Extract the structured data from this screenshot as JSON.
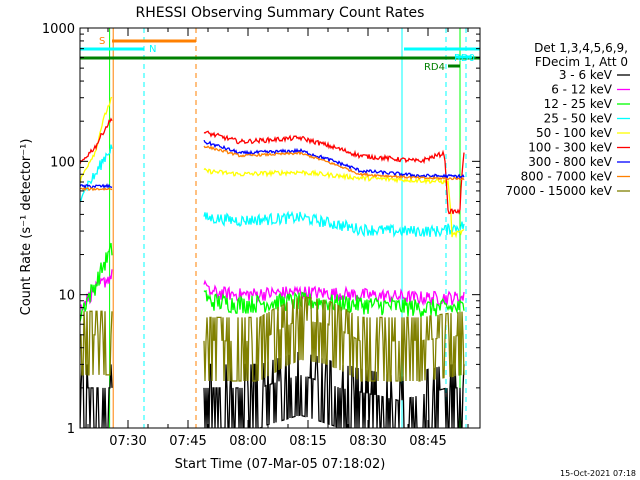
{
  "chart_data": {
    "type": "line",
    "title": "RHESSI Observing Summary Count Rates",
    "xlabel": "Start Time (07-Mar-05 07:18:02)",
    "ylabel": "Count Rate (s⁻¹ detector⁻¹)",
    "yscale": "log",
    "ylim": [
      1,
      1000
    ],
    "xlim_minutes": [
      0,
      100
    ],
    "x_ticks": [
      {
        "label": "07:30",
        "minute": 12
      },
      {
        "label": "07:45",
        "minute": 27
      },
      {
        "label": "08:00",
        "minute": 42
      },
      {
        "label": "08:15",
        "minute": 57
      },
      {
        "label": "08:30",
        "minute": 72
      },
      {
        "label": "08:45",
        "minute": 87
      }
    ],
    "y_ticks": [
      {
        "label": "1",
        "value": 1
      },
      {
        "label": "10",
        "value": 10
      },
      {
        "label": "100",
        "value": 100
      },
      {
        "label": "1000",
        "value": 1000
      }
    ],
    "legend_header": [
      "Det 1,3,4,5,6,9,",
      "FDecim 1, Att 0"
    ],
    "legend_position": "right",
    "series": [
      {
        "name": "3 - 6 keV",
        "color": "#000000",
        "noise": 0.5,
        "segments": [
          {
            "x": [
              0,
              8
            ],
            "y": [
              2,
              2
            ]
          },
          {
            "x": [
              31,
              45,
              55,
              65,
              80,
              92,
              96
            ],
            "y": [
              2,
              2,
              2.5,
              2,
              1.6,
              2,
              2
            ]
          }
        ]
      },
      {
        "name": "6 - 12 keV",
        "color": "#ff00ff",
        "noise": 0.06,
        "segments": [
          {
            "x": [
              0,
              4,
              8
            ],
            "y": [
              8,
              11,
              14
            ]
          },
          {
            "x": [
              31,
              32,
              40,
              55,
              70,
              85,
              96
            ],
            "y": [
              13,
              10.5,
              10,
              10.5,
              10,
              9.5,
              9.5
            ]
          }
        ]
      },
      {
        "name": "12 - 25 keV",
        "color": "#00ff00",
        "noise": 0.08,
        "segments": [
          {
            "x": [
              0,
              4,
              8
            ],
            "y": [
              7,
              12,
              22
            ]
          },
          {
            "x": [
              31,
              32,
              40,
              55,
              70,
              85,
              96
            ],
            "y": [
              11,
              9,
              8.5,
              9,
              8.5,
              8,
              8
            ]
          }
        ]
      },
      {
        "name": "25 - 50 keV",
        "color": "#00ffff",
        "noise": 0.05,
        "segments": [
          {
            "x": [
              0,
              4,
              8
            ],
            "y": [
              55,
              80,
              130
            ]
          },
          {
            "x": [
              31,
              40,
              55,
              70,
              80,
              90,
              96
            ],
            "y": [
              38,
              36,
              38,
              31,
              30,
              30,
              33
            ]
          }
        ]
      },
      {
        "name": "50 - 100 keV",
        "color": "#ffff00",
        "noise": 0.02,
        "segments": [
          {
            "x": [
              0,
              4,
              8
            ],
            "y": [
              70,
              120,
              300
            ]
          },
          {
            "x": [
              31,
              40,
              55,
              70,
              85,
              92,
              93,
              96
            ],
            "y": [
              85,
              80,
              83,
              75,
              72,
              70,
              28,
              30
            ]
          }
        ]
      },
      {
        "name": "100 - 300 keV",
        "color": "#ff0000",
        "noise": 0.02,
        "segments": [
          {
            "x": [
              0,
              4,
              8
            ],
            "y": [
              95,
              130,
              210
            ]
          },
          {
            "x": [
              31,
              40,
              55,
              70,
              85,
              91,
              92,
              95,
              96
            ],
            "y": [
              165,
              140,
              150,
              110,
              100,
              115,
              42,
              42,
              120
            ]
          }
        ]
      },
      {
        "name": "300 - 800 keV",
        "color": "#0000ff",
        "noise": 0.015,
        "segments": [
          {
            "x": [
              0,
              8
            ],
            "y": [
              65,
              65
            ]
          },
          {
            "x": [
              31,
              40,
              55,
              70,
              85,
              96
            ],
            "y": [
              140,
              115,
              120,
              85,
              78,
              77
            ]
          }
        ]
      },
      {
        "name": "800 - 7000 keV",
        "color": "#ff8000",
        "noise": 0.01,
        "segments": [
          {
            "x": [
              0,
              8
            ],
            "y": [
              62,
              62
            ]
          },
          {
            "x": [
              31,
              40,
              55,
              70,
              85,
              96
            ],
            "y": [
              130,
              110,
              115,
              80,
              75,
              74
            ]
          }
        ]
      },
      {
        "name": "7000 - 15000 keV",
        "color": "#808000",
        "noise": 0.12,
        "segments": [
          {
            "x": [
              0,
              8
            ],
            "y": [
              5,
              5
            ]
          },
          {
            "x": [
              31,
              45,
              55,
              62,
              70,
              85,
              96
            ],
            "y": [
              4.5,
              4.5,
              6.5,
              6,
              4.5,
              4.5,
              5
            ]
          }
        ]
      }
    ],
    "flags": [
      {
        "label": "S",
        "color": "#ff8000",
        "x_start": 8,
        "x_end": 29
      },
      {
        "label": "N",
        "color": "#00ffff",
        "x_start": 0,
        "x_end": 16
      },
      {
        "label": "",
        "color": "#00ffff",
        "x_start": 81,
        "x_end": 100
      },
      {
        "label": "",
        "color": "#008000",
        "x_start": 0,
        "x_end": 100
      },
      {
        "label": "RD4",
        "color": "#008000",
        "x_start": 92,
        "x_end": 95
      },
      {
        "label": "RD0",
        "color": "#00ffff",
        "x_start": 94,
        "x_end": 98
      }
    ],
    "vlines": [
      {
        "minute": 0,
        "color": "#00ffff",
        "style": "solid"
      },
      {
        "minute": 8.3,
        "color": "#ff8000",
        "style": "solid"
      },
      {
        "minute": 7.4,
        "color": "#00ff00",
        "style": "solid"
      },
      {
        "minute": 16,
        "color": "#00ffff",
        "style": "dashed"
      },
      {
        "minute": 29,
        "color": "#ff8000",
        "style": "dashed"
      },
      {
        "minute": 80.5,
        "color": "#00ffff",
        "style": "solid"
      },
      {
        "minute": 91.5,
        "color": "#00ffff",
        "style": "dashed"
      },
      {
        "minute": 95,
        "color": "#00ff00",
        "style": "solid"
      },
      {
        "minute": 96.5,
        "color": "#00ffff",
        "style": "dashed"
      }
    ],
    "footer_date": "15-Oct-2021 07:18"
  }
}
